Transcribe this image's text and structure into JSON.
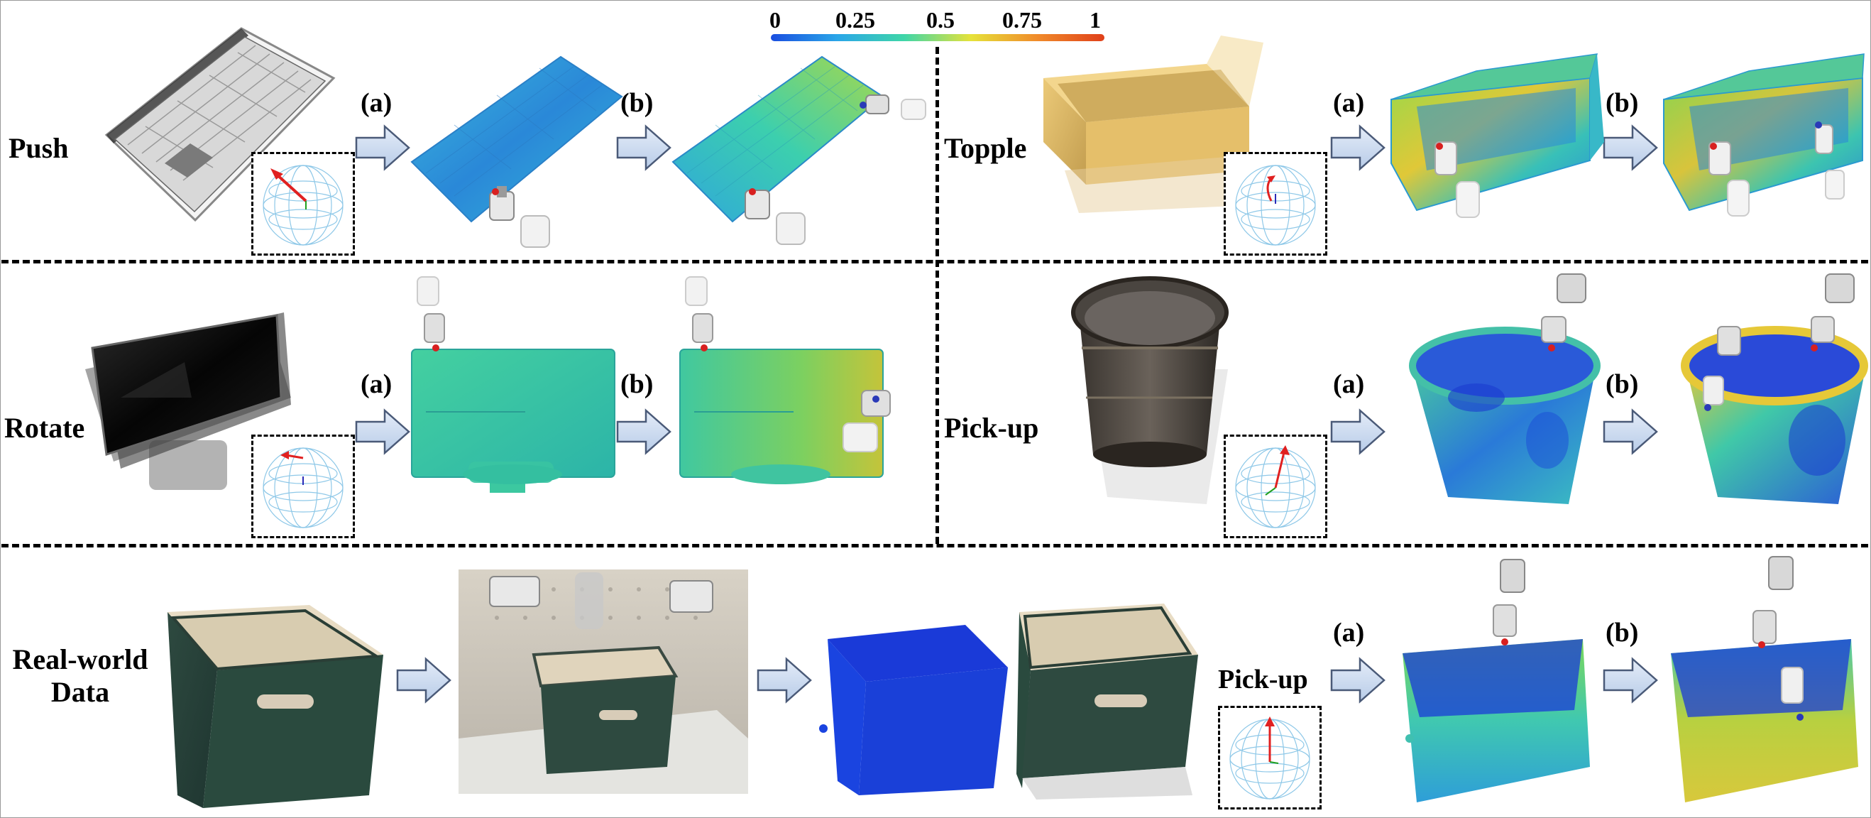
{
  "colorbar": {
    "ticks": [
      "0",
      "0.25",
      "0.5",
      "0.75",
      "1"
    ],
    "colors": [
      "#1a4ee0",
      "#2aa6e8",
      "#3fd6a8",
      "#e6e23a",
      "#f08a2a",
      "#e0401a"
    ]
  },
  "step_labels": {
    "a": "(a)",
    "b": "(b)"
  },
  "tasks": {
    "push": {
      "label": "Push"
    },
    "topple": {
      "label": "Topple"
    },
    "rotate": {
      "label": "Rotate"
    },
    "pickup": {
      "label": "Pick-up"
    }
  },
  "realworld": {
    "label_line1": "Real-world",
    "label_line2": "Data",
    "task_label": "Pick-up"
  },
  "affordance_colors": {
    "low": "#1a3fd8",
    "mid_low": "#2a9fe0",
    "mid": "#3ccfa0",
    "mid_high": "#9ad84a",
    "high": "#e6d832"
  }
}
